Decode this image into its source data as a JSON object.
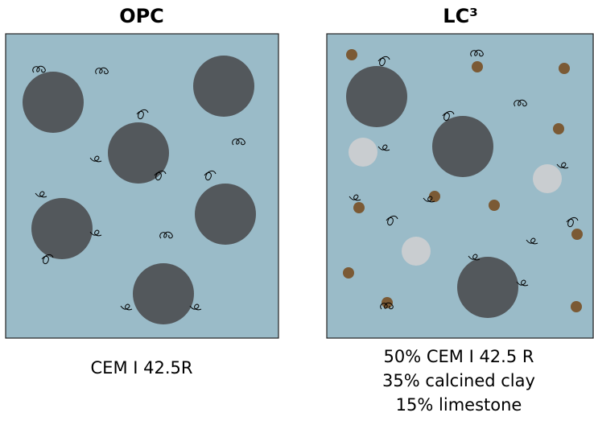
{
  "panels": [
    {
      "title": "OPC",
      "caption": [
        "CEM I 42.5R"
      ]
    },
    {
      "title": "LC³",
      "caption": [
        "50% CEM I 42.5 R",
        "35% calcined clay",
        "15% limestone"
      ]
    }
  ]
}
